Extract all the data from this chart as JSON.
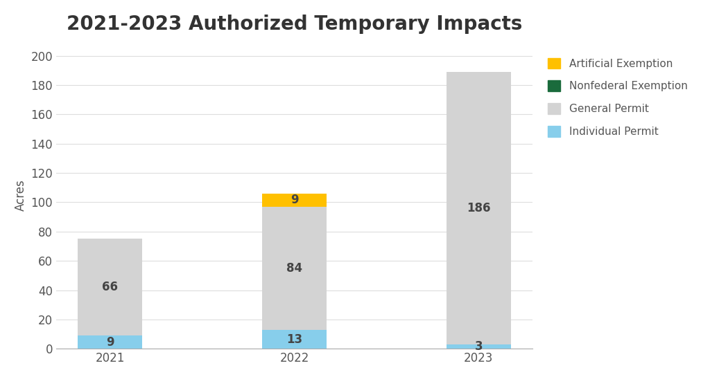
{
  "title": "2021-2023 Authorized Temporary Impacts",
  "years": [
    "2021",
    "2022",
    "2023"
  ],
  "individual_permit": [
    9,
    13,
    3
  ],
  "general_permit": [
    66,
    84,
    186
  ],
  "nonfederal_exemption": [
    0,
    0,
    0
  ],
  "artificial_exemption": [
    0,
    9,
    0
  ],
  "colors": {
    "individual_permit": "#87CEEB",
    "general_permit": "#D3D3D3",
    "nonfederal_exemption": "#1a6b3c",
    "artificial_exemption": "#FFC000"
  },
  "ylabel": "Acres",
  "ylim": [
    0,
    210
  ],
  "yticks": [
    0,
    20,
    40,
    60,
    80,
    100,
    120,
    140,
    160,
    180,
    200
  ],
  "legend_labels": [
    "Artificial Exemption",
    "Nonfederal Exemption",
    "General Permit",
    "Individual Permit"
  ],
  "background_color": "#ffffff",
  "title_fontsize": 20,
  "label_fontsize": 12,
  "tick_fontsize": 12,
  "value_fontsize": 12,
  "bar_width": 0.35
}
